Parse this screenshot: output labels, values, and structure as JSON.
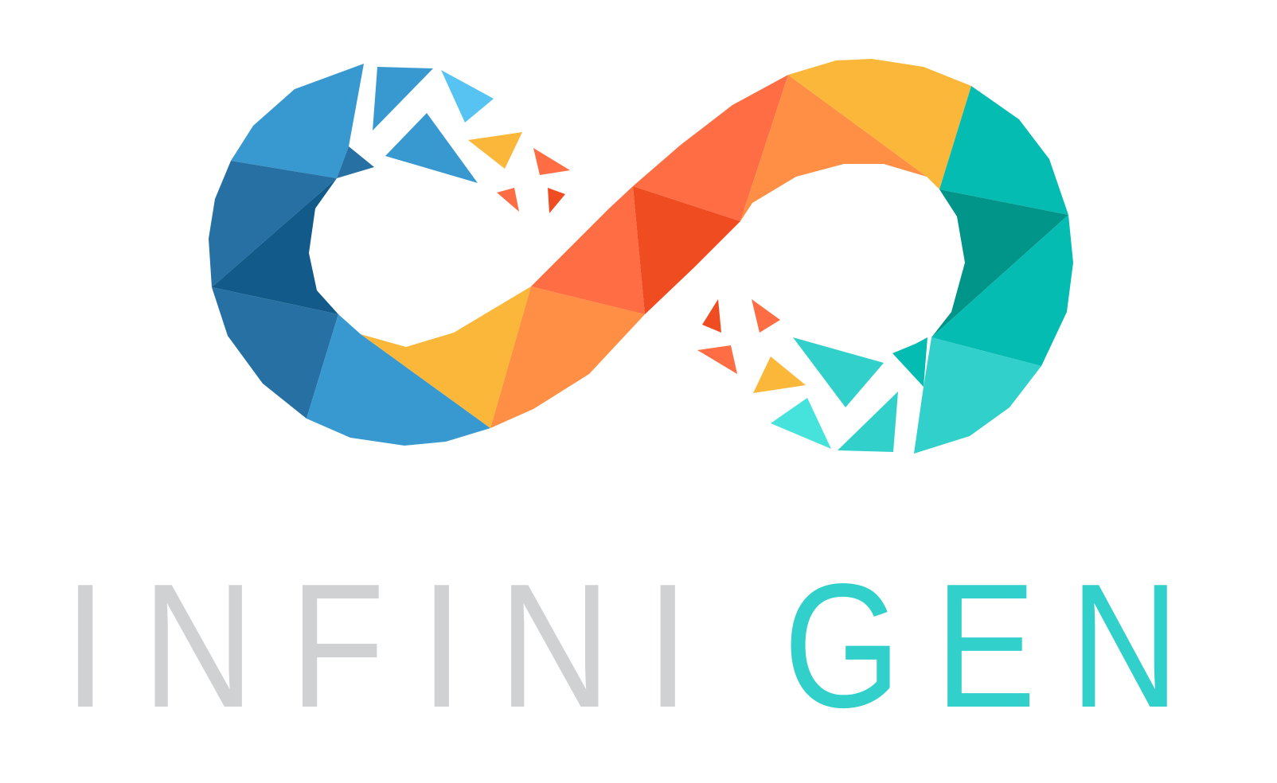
{
  "logo": {
    "wordmark_left": "INFINI",
    "wordmark_right": "GEN",
    "colors": {
      "wordmark_gray": "#d0d1d3",
      "wordmark_teal": "#31d0cb",
      "blue_light": "#3899d1",
      "blue_mid": "#2770a3",
      "blue_dark": "#125a8a",
      "sky": "#56c3f2",
      "yellow": "#fbb73a",
      "orange": "#fe8f45",
      "coral": "#fe6d43",
      "red": "#ef4c22",
      "teal": "#05bcb3",
      "teal_dark": "#01958a",
      "aqua": "#31d0cb",
      "aqua_light": "#46e2dc"
    }
  }
}
